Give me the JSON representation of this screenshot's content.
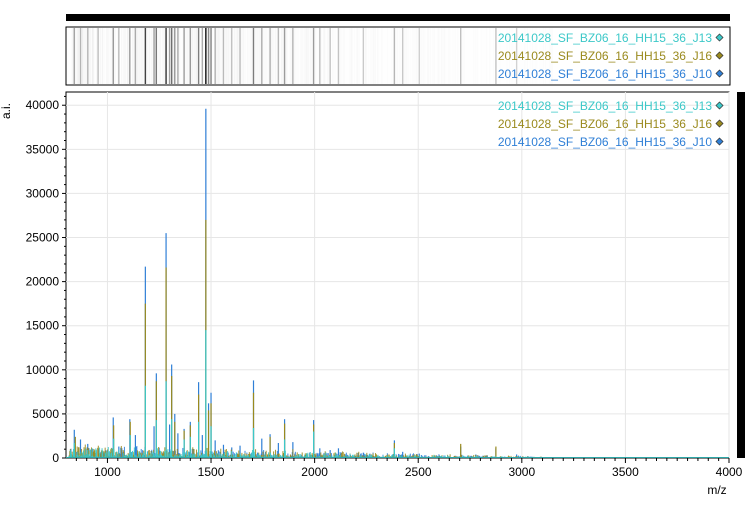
{
  "chart_data": {
    "type": "line",
    "title": "",
    "xlabel": "m/z",
    "ylabel": "a.i.",
    "xlim": [
      800,
      4000
    ],
    "ylim": [
      0,
      41500
    ],
    "grid": true,
    "legend_position": "top-right",
    "x_ticks": [
      1000,
      1500,
      2000,
      2500,
      3000,
      3500,
      4000
    ],
    "x_tick_labels": [
      "1000",
      "1500",
      "2000",
      "2500",
      "3000",
      "3500",
      "4000"
    ],
    "y_ticks": [
      0,
      5000,
      10000,
      15000,
      20000,
      25000,
      30000,
      35000,
      40000
    ],
    "y_tick_labels": [
      "0",
      "5000",
      "10000",
      "15000",
      "20000",
      "25000",
      "30000",
      "35000",
      "40000"
    ],
    "series": [
      {
        "name": "20141028_SF_BZ06_16_HH15_36_J10",
        "color": "#2f7fd6",
        "x": [
          840,
          870,
          905,
          955,
          1028,
          1055,
          1108,
          1135,
          1183,
          1225,
          1236,
          1283,
          1300,
          1310,
          1325,
          1340,
          1370,
          1400,
          1440,
          1458,
          1475,
          1488,
          1500,
          1520,
          1560,
          1600,
          1640,
          1705,
          1745,
          1785,
          1825,
          1855,
          1895,
          1995,
          2025,
          2075,
          2115,
          2235,
          2385,
          2425,
          2505,
          2705,
          2875,
          2975
        ],
        "y": [
          3200,
          2100,
          1600,
          1100,
          4600,
          1300,
          4400,
          2600,
          21700,
          3600,
          9600,
          25500,
          3800,
          10600,
          5000,
          2800,
          3300,
          4100,
          8600,
          2600,
          39600,
          6200,
          7400,
          2000,
          1500,
          1200,
          1400,
          8800,
          2200,
          2700,
          1700,
          4400,
          1800,
          4300,
          1100,
          900,
          1100,
          600,
          2000,
          700,
          500,
          1300,
          1100,
          400
        ]
      },
      {
        "name": "20141028_SF_BZ06_16_HH15_36_J16",
        "color": "#9a8a1e",
        "x": [
          845,
          905,
          1030,
          1110,
          1183,
          1236,
          1283,
          1310,
          1325,
          1370,
          1400,
          1440,
          1475,
          1488,
          1500,
          1705,
          1785,
          1855,
          1995,
          2385,
          2705,
          2875
        ],
        "y": [
          2400,
          1200,
          3700,
          4100,
          17500,
          8700,
          21600,
          9300,
          4100,
          3100,
          3700,
          7200,
          27000,
          5400,
          6200,
          7400,
          2400,
          3900,
          3800,
          1700,
          1600,
          1300
        ]
      },
      {
        "name": "20141028_SF_BZ06_16_HH15_36_J13",
        "color": "#3cc8c8",
        "x": [
          840,
          905,
          1030,
          1110,
          1183,
          1236,
          1283,
          1310,
          1370,
          1400,
          1440,
          1475,
          1500,
          1705,
          1855,
          1995,
          2385
        ],
        "y": [
          1700,
          900,
          2200,
          2600,
          8200,
          4300,
          8700,
          4400,
          2100,
          2400,
          4100,
          14500,
          3600,
          3400,
          2100,
          3000,
          1100
        ]
      }
    ]
  }
}
